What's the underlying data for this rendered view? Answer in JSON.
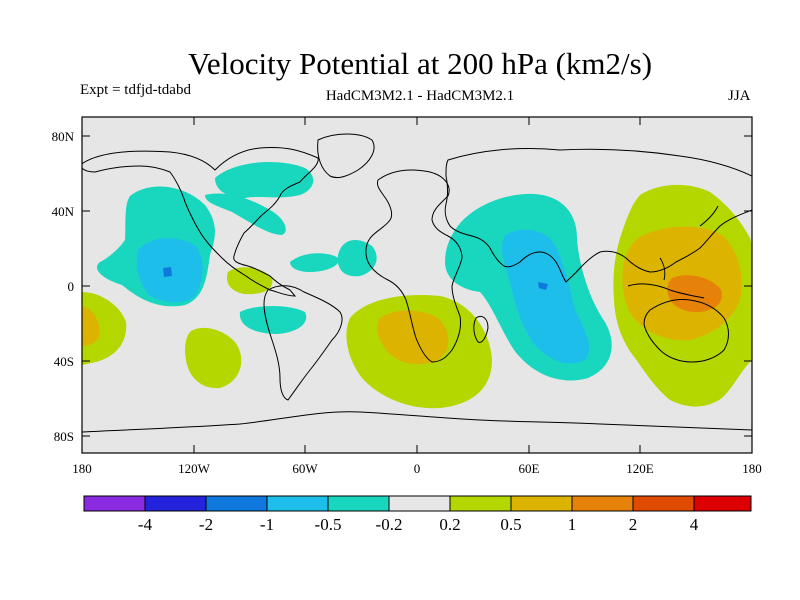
{
  "title": "Velocity Potential at 200 hPa (km2/s)",
  "experiment": "Expt = tdfjd-tdabd",
  "models": "HadCM3M2.1 - HadCM3M2.1",
  "season": "JJA",
  "map": {
    "lat_labels": [
      "80N",
      "40N",
      "0",
      "40S",
      "80S"
    ],
    "lon_labels": [
      "180",
      "120W",
      "60W",
      "0",
      "60E",
      "120E",
      "180"
    ]
  },
  "colorbar": {
    "labels": [
      "-4",
      "-2",
      "-1",
      "-0.5",
      "-0.2",
      "0.2",
      "0.5",
      "1",
      "2",
      "4"
    ],
    "colors": [
      "#8a2be2",
      "#2323dc",
      "#0f78dc",
      "#1ebeeb",
      "#19d7be",
      "#e6e6e6",
      "#b4d700",
      "#dcb400",
      "#e6820a",
      "#e14b00",
      "#dc0000"
    ]
  },
  "field_colors": {
    "background": "#e6e6e6",
    "neg_02": "#19d7be",
    "neg_05": "#1ebeeb",
    "neg_1": "#0f78dc",
    "pos_02": "#b4d700",
    "pos_05": "#dcb400",
    "pos_1": "#e6820a"
  }
}
